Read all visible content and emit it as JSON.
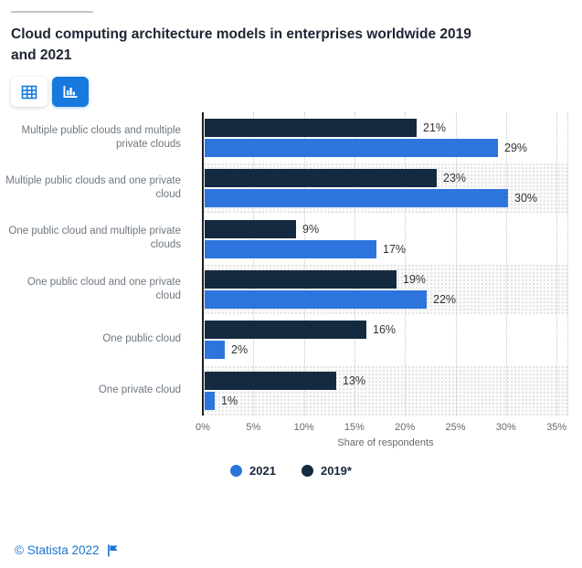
{
  "header": {
    "title": "Cloud computing architecture models in enterprises worldwide 2019 and 2021"
  },
  "toolbar": {
    "buttons": [
      {
        "name": "table-view",
        "icon": "table-icon",
        "active": false
      },
      {
        "name": "chart-view",
        "icon": "bar-chart-icon",
        "active": true
      }
    ]
  },
  "chart_data": {
    "type": "bar",
    "orientation": "horizontal",
    "title": "Cloud computing architecture models in enterprises worldwide 2019 and 2021",
    "categories": [
      "Multiple public clouds and multiple private clouds",
      "Multiple public clouds and one private cloud",
      "One public cloud and multiple private clouds",
      "One public cloud and one private cloud",
      "One public cloud",
      "One private cloud"
    ],
    "series": [
      {
        "name": "2021",
        "color": "#2d75dc",
        "values": [
          29,
          30,
          17,
          22,
          2,
          1
        ]
      },
      {
        "name": "2019*",
        "color": "#132a40",
        "values": [
          21,
          23,
          9,
          19,
          16,
          13
        ]
      }
    ],
    "bar_order_top_to_bottom": [
      "2019*",
      "2021"
    ],
    "value_label_format": "{v}%",
    "xlabel": "Share of respondents",
    "xlim": [
      0,
      35
    ],
    "xticks": [
      "0%",
      "5%",
      "10%",
      "15%",
      "20%",
      "25%",
      "30%",
      "35%"
    ],
    "grid": "vertical-dotted",
    "row_shading": "alternate",
    "legend_position": "bottom-center"
  },
  "legend": {
    "items": [
      {
        "label": "2021",
        "color": "#2d75dc"
      },
      {
        "label": "2019*",
        "color": "#132a40"
      }
    ]
  },
  "footer": {
    "copyright": "© Statista 2022",
    "icon": "flag-icon"
  },
  "colors": {
    "accent_blue": "#1779dd",
    "bar_blue": "#2d75dc",
    "bar_navy": "#132a40",
    "link_blue": "#1b76d1",
    "title_text": "#1d2433",
    "category_label_gray": "#6e7780",
    "tick_gray": "#65696e",
    "divider_gray": "#c4c4c4"
  }
}
